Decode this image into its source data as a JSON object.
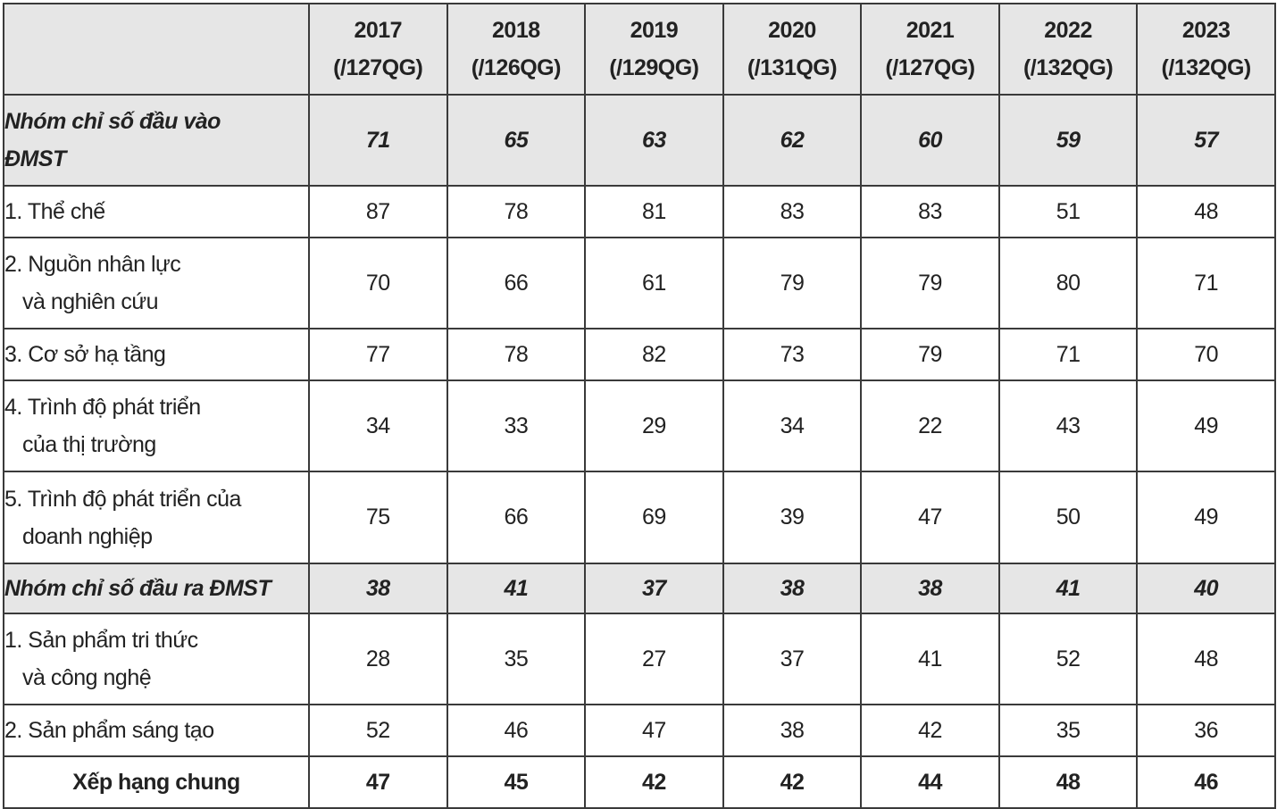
{
  "table": {
    "header": {
      "corner": "",
      "years": [
        {
          "year": "2017",
          "count": "(/127QG)"
        },
        {
          "year": "2018",
          "count": "(/126QG)"
        },
        {
          "year": "2019",
          "count": "(/129QG)"
        },
        {
          "year": "2020",
          "count": "(/131QG)"
        },
        {
          "year": "2021",
          "count": "(/127QG)"
        },
        {
          "year": "2022",
          "count": "(/132QG)"
        },
        {
          "year": "2023",
          "count": "(/132QG)"
        }
      ]
    },
    "rows": [
      {
        "kind": "group",
        "label": [
          "Nhóm chỉ số đầu vào",
          "ĐMST"
        ],
        "values": [
          "71",
          "65",
          "63",
          "62",
          "60",
          "59",
          "57"
        ]
      },
      {
        "kind": "item",
        "label": [
          "1. Thể chế"
        ],
        "values": [
          "87",
          "78",
          "81",
          "83",
          "83",
          "51",
          "48"
        ]
      },
      {
        "kind": "item",
        "label": [
          "2. Nguồn nhân lực",
          "và nghiên cứu"
        ],
        "values": [
          "70",
          "66",
          "61",
          "79",
          "79",
          "80",
          "71"
        ]
      },
      {
        "kind": "item",
        "label": [
          "3. Cơ sở hạ tầng"
        ],
        "values": [
          "77",
          "78",
          "82",
          "73",
          "79",
          "71",
          "70"
        ]
      },
      {
        "kind": "item",
        "label": [
          "4. Trình độ phát triển",
          "của thị trường"
        ],
        "values": [
          "34",
          "33",
          "29",
          "34",
          "22",
          "43",
          "49"
        ]
      },
      {
        "kind": "item",
        "label": [
          "5. Trình độ phát triển của",
          "doanh nghiệp"
        ],
        "values": [
          "75",
          "66",
          "69",
          "39",
          "47",
          "50",
          "49"
        ]
      },
      {
        "kind": "group",
        "label": [
          "Nhóm chỉ số đầu ra ĐMST"
        ],
        "values": [
          "38",
          "41",
          "37",
          "38",
          "38",
          "41",
          "40"
        ]
      },
      {
        "kind": "item",
        "label": [
          "1. Sản phẩm tri thức",
          "và công nghệ"
        ],
        "values": [
          "28",
          "35",
          "27",
          "37",
          "41",
          "52",
          "48"
        ]
      },
      {
        "kind": "item",
        "label": [
          "2. Sản phẩm sáng tạo"
        ],
        "values": [
          "52",
          "46",
          "47",
          "38",
          "42",
          "35",
          "36"
        ]
      },
      {
        "kind": "total",
        "label": [
          "Xếp hạng chung"
        ],
        "values": [
          "47",
          "45",
          "42",
          "42",
          "44",
          "48",
          "46"
        ]
      }
    ]
  }
}
